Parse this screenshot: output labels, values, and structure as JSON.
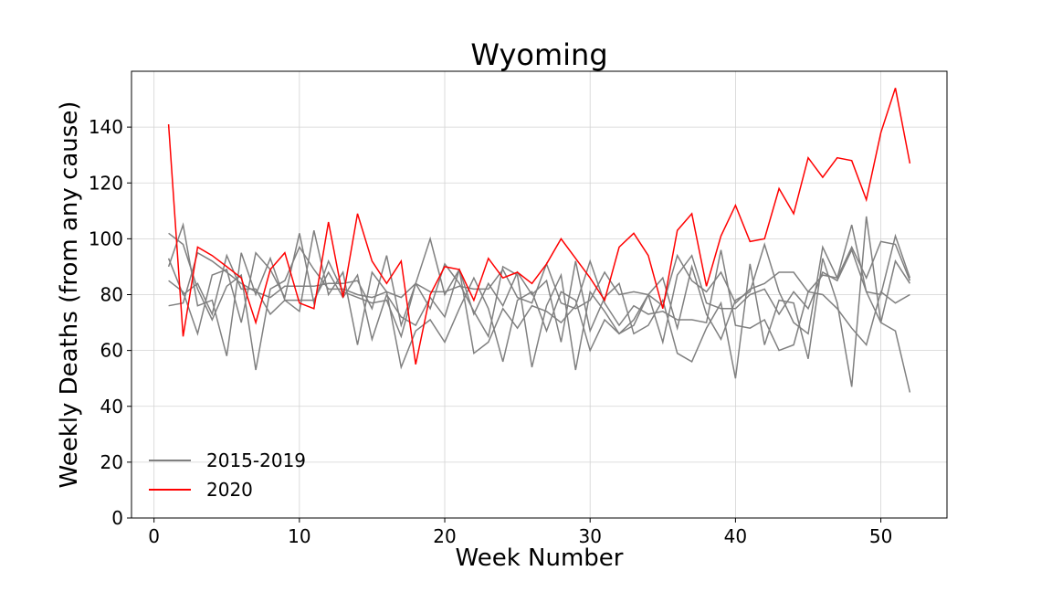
{
  "chart_data": {
    "type": "line",
    "title": "Wyoming",
    "xlabel": "Week Number",
    "ylabel": "Weekly Deaths (from any cause)",
    "xlim": [
      -1.55,
      54.55
    ],
    "ylim": [
      0,
      160
    ],
    "xticks": [
      0,
      10,
      20,
      30,
      40,
      50
    ],
    "yticks": [
      0,
      20,
      40,
      60,
      80,
      100,
      120,
      140
    ],
    "grid": true,
    "legend_position": "lower-left",
    "legend": [
      {
        "label": "2015-2019",
        "color": "#808080"
      },
      {
        "label": "2020",
        "color": "#ff0000"
      }
    ],
    "series": [
      {
        "name": "2015-2019",
        "color": "#808080",
        "x": [
          1,
          2,
          3,
          4,
          5,
          6,
          7,
          8,
          9,
          10,
          11,
          12,
          13,
          14,
          15,
          16,
          17,
          18,
          19,
          20,
          21,
          22,
          23,
          24,
          25,
          26,
          27,
          28,
          29,
          30,
          31,
          32,
          33,
          34,
          35,
          36,
          37,
          38,
          39,
          40,
          41,
          42,
          43,
          44,
          45,
          46,
          47,
          48,
          49,
          50,
          51,
          52
        ],
        "values": [
          102,
          98,
          82,
          71,
          83,
          87,
          53,
          82,
          85,
          97,
          89,
          82,
          82,
          80,
          79,
          81,
          79,
          84,
          75,
          91,
          84,
          74,
          65,
          90,
          87,
          54,
          76,
          87,
          53,
          81,
          74,
          66,
          69,
          80,
          76,
          94,
          85,
          81,
          88,
          77,
          82,
          84,
          88,
          88,
          81,
          87,
          86,
          97,
          86,
          99,
          98,
          85
        ]
      },
      {
        "name": "2015-2019",
        "color": "#808080",
        "x": [
          1,
          2,
          3,
          4,
          5,
          6,
          7,
          8,
          9,
          10,
          11,
          12,
          13,
          14,
          15,
          16,
          17,
          18,
          19,
          20,
          21,
          22,
          23,
          24,
          25,
          26,
          27,
          28,
          29,
          30,
          31,
          32,
          33,
          34,
          35,
          36,
          37,
          38,
          39,
          40,
          41,
          42,
          43,
          44,
          45,
          46,
          47,
          48,
          49,
          50,
          51,
          52
        ],
        "values": [
          90,
          105,
          76,
          78,
          58,
          95,
          80,
          93,
          78,
          74,
          103,
          80,
          88,
          62,
          88,
          81,
          54,
          67,
          71,
          63,
          75,
          86,
          75,
          56,
          78,
          81,
          67,
          81,
          78,
          60,
          71,
          66,
          71,
          80,
          86,
          68,
          90,
          73,
          64,
          78,
          81,
          98,
          81,
          70,
          66,
          97,
          86,
          105,
          81,
          80,
          101,
          86
        ]
      },
      {
        "name": "2015-2019",
        "color": "#808080",
        "x": [
          1,
          2,
          3,
          4,
          5,
          6,
          7,
          8,
          9,
          10,
          11,
          12,
          13,
          14,
          15,
          16,
          17,
          18,
          19,
          20,
          21,
          22,
          23,
          24,
          25,
          26,
          27,
          28,
          29,
          30,
          31,
          32,
          33,
          34,
          35,
          36,
          37,
          38,
          39,
          40,
          41,
          42,
          43,
          44,
          45,
          46,
          47,
          48,
          49,
          50,
          51,
          52
        ],
        "values": [
          76,
          77,
          95,
          92,
          88,
          84,
          81,
          79,
          83,
          83,
          83,
          84,
          84,
          85,
          75,
          94,
          69,
          84,
          81,
          81,
          83,
          82,
          82,
          89,
          79,
          77,
          91,
          77,
          75,
          78,
          88,
          80,
          81,
          80,
          63,
          87,
          94,
          77,
          75,
          75,
          80,
          82,
          73,
          81,
          75,
          88,
          85,
          96,
          81,
          70,
          67,
          45
        ]
      },
      {
        "name": "2015-2019",
        "color": "#808080",
        "x": [
          1,
          2,
          3,
          4,
          5,
          6,
          7,
          8,
          9,
          10,
          11,
          12,
          13,
          14,
          15,
          16,
          17,
          18,
          19,
          20,
          21,
          22,
          23,
          24,
          25,
          26,
          27,
          28,
          29,
          30,
          31,
          32,
          33,
          34,
          35,
          36,
          37,
          38,
          39,
          40,
          41,
          42,
          43,
          44,
          45,
          46,
          47,
          48,
          49,
          50,
          51,
          52
        ],
        "values": [
          85,
          81,
          66,
          87,
          89,
          70,
          95,
          89,
          79,
          102,
          77,
          92,
          81,
          79,
          77,
          78,
          65,
          84,
          100,
          80,
          89,
          73,
          84,
          76,
          88,
          80,
          85,
          63,
          92,
          67,
          79,
          84,
          66,
          69,
          78,
          59,
          56,
          68,
          77,
          50,
          91,
          62,
          78,
          77,
          57,
          93,
          77,
          47,
          108,
          70,
          92,
          84
        ]
      },
      {
        "name": "2015-2019",
        "color": "#808080",
        "x": [
          1,
          2,
          3,
          4,
          5,
          6,
          7,
          8,
          9,
          10,
          11,
          12,
          13,
          14,
          15,
          16,
          17,
          18,
          19,
          20,
          21,
          22,
          23,
          24,
          25,
          26,
          27,
          28,
          29,
          30,
          31,
          32,
          33,
          34,
          35,
          36,
          37,
          38,
          39,
          40,
          41,
          42,
          43,
          44,
          45,
          46,
          47,
          48,
          49,
          50,
          51,
          52
        ],
        "values": [
          93,
          80,
          84,
          73,
          94,
          82,
          82,
          73,
          78,
          78,
          78,
          88,
          79,
          87,
          64,
          80,
          72,
          69,
          79,
          72,
          89,
          59,
          63,
          75,
          68,
          76,
          74,
          70,
          76,
          92,
          77,
          69,
          76,
          73,
          74,
          71,
          71,
          70,
          96,
          69,
          68,
          71,
          60,
          62,
          81,
          80,
          75,
          68,
          62,
          81,
          77,
          80
        ]
      },
      {
        "name": "2020",
        "color": "#ff0000",
        "x": [
          1,
          2,
          3,
          4,
          5,
          6,
          7,
          8,
          9,
          10,
          11,
          12,
          13,
          14,
          15,
          16,
          17,
          18,
          19,
          20,
          21,
          22,
          23,
          24,
          25,
          26,
          27,
          28,
          29,
          30,
          31,
          32,
          33,
          34,
          35,
          36,
          37,
          38,
          39,
          40,
          41,
          42,
          43,
          44,
          45,
          46,
          47,
          48,
          49,
          50,
          51,
          52
        ],
        "values": [
          141,
          65,
          97,
          94,
          90,
          86,
          70,
          89,
          95,
          77,
          75,
          106,
          79,
          109,
          92,
          84,
          92,
          55,
          80,
          90,
          89,
          78,
          93,
          86,
          88,
          84,
          91,
          100,
          93,
          86,
          78,
          97,
          102,
          94,
          75,
          103,
          109,
          83,
          101,
          112,
          99,
          100,
          118,
          109,
          129,
          122,
          129,
          128,
          114,
          138,
          154,
          127
        ]
      }
    ]
  }
}
